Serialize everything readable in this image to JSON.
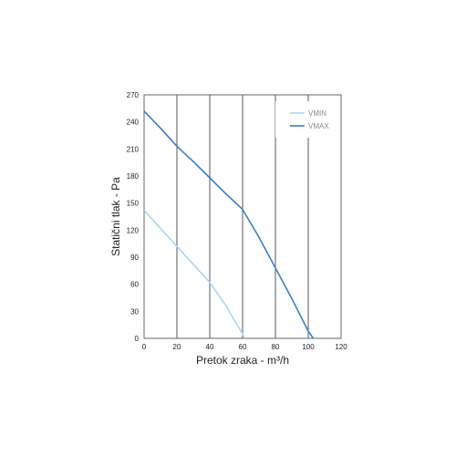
{
  "chart_data": {
    "type": "line",
    "title": "",
    "xlabel": "Pretok zraka - m³/h",
    "ylabel": "Statični tlak - Pa",
    "xlim": [
      0,
      120
    ],
    "ylim": [
      0,
      270
    ],
    "xticks": [
      0,
      20,
      40,
      60,
      80,
      100,
      120
    ],
    "yticks": [
      0,
      30,
      60,
      90,
      120,
      150,
      180,
      210,
      240,
      270
    ],
    "grid": "vertical",
    "legend_position": "top-right",
    "series": [
      {
        "name": "VMIN",
        "color": "#a8d8ee",
        "points": [
          [
            0,
            142
          ],
          [
            10,
            122
          ],
          [
            20,
            102
          ],
          [
            30,
            82
          ],
          [
            40,
            62
          ],
          [
            50,
            36
          ],
          [
            55,
            20
          ],
          [
            60,
            5
          ],
          [
            61,
            0
          ]
        ]
      },
      {
        "name": "VMAX",
        "color": "#3a7fc8",
        "points": [
          [
            0,
            252
          ],
          [
            10,
            233
          ],
          [
            20,
            213
          ],
          [
            30,
            196
          ],
          [
            40,
            178
          ],
          [
            50,
            160
          ],
          [
            60,
            143
          ],
          [
            70,
            112
          ],
          [
            80,
            78
          ],
          [
            90,
            44
          ],
          [
            100,
            8
          ],
          [
            103,
            0
          ]
        ]
      }
    ]
  }
}
